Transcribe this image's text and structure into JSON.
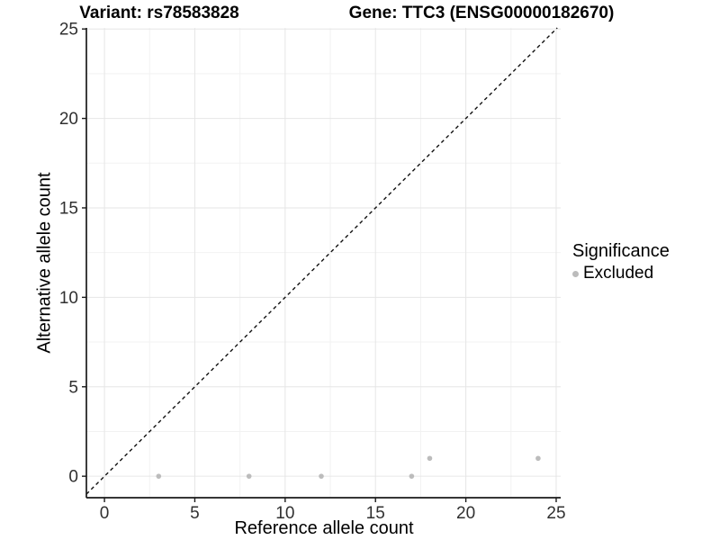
{
  "titles": {
    "left": "Variant: rs78583828",
    "right": "Gene: TTC3 (ENSG00000182670)"
  },
  "legend": {
    "title": "Significance",
    "items": [
      {
        "label": "Excluded",
        "color": "#bcbcbc"
      }
    ]
  },
  "colors": {
    "point": "#bcbcbc",
    "axis_line": "#1a1a1a",
    "tick_label": "#303030",
    "grid_major": "#e6e6e6",
    "grid_minor": "#f2f2f2",
    "reference_line": "#111111",
    "background": "#ffffff"
  },
  "chart_data": {
    "type": "scatter",
    "title_left": "Variant: rs78583828",
    "title_right": "Gene: TTC3 (ENSG00000182670)",
    "xlabel": "Reference allele count",
    "ylabel": "Alternative allele count",
    "xlim": [
      -1.0,
      25.25
    ],
    "ylim": [
      -1.2,
      25.06
    ],
    "x_ticks": [
      0,
      5,
      10,
      15,
      20,
      25
    ],
    "y_ticks": [
      0,
      5,
      10,
      15,
      20,
      25
    ],
    "x_minor_ticks": [
      2.5,
      7.5,
      12.5,
      17.5,
      22.5
    ],
    "y_minor_ticks": [
      2.5,
      7.5,
      12.5,
      17.5,
      22.5
    ],
    "grid": true,
    "legend_position": "right",
    "legend_title": "Significance",
    "series": [
      {
        "name": "Excluded",
        "color": "#bcbcbc",
        "points": [
          [
            3,
            0
          ],
          [
            8,
            0
          ],
          [
            12,
            0
          ],
          [
            17,
            0
          ],
          [
            18,
            1
          ],
          [
            24,
            1
          ]
        ]
      }
    ],
    "reference_line": {
      "type": "abline",
      "slope": 1,
      "intercept": 0,
      "style": "dashed",
      "color": "#111111"
    }
  }
}
